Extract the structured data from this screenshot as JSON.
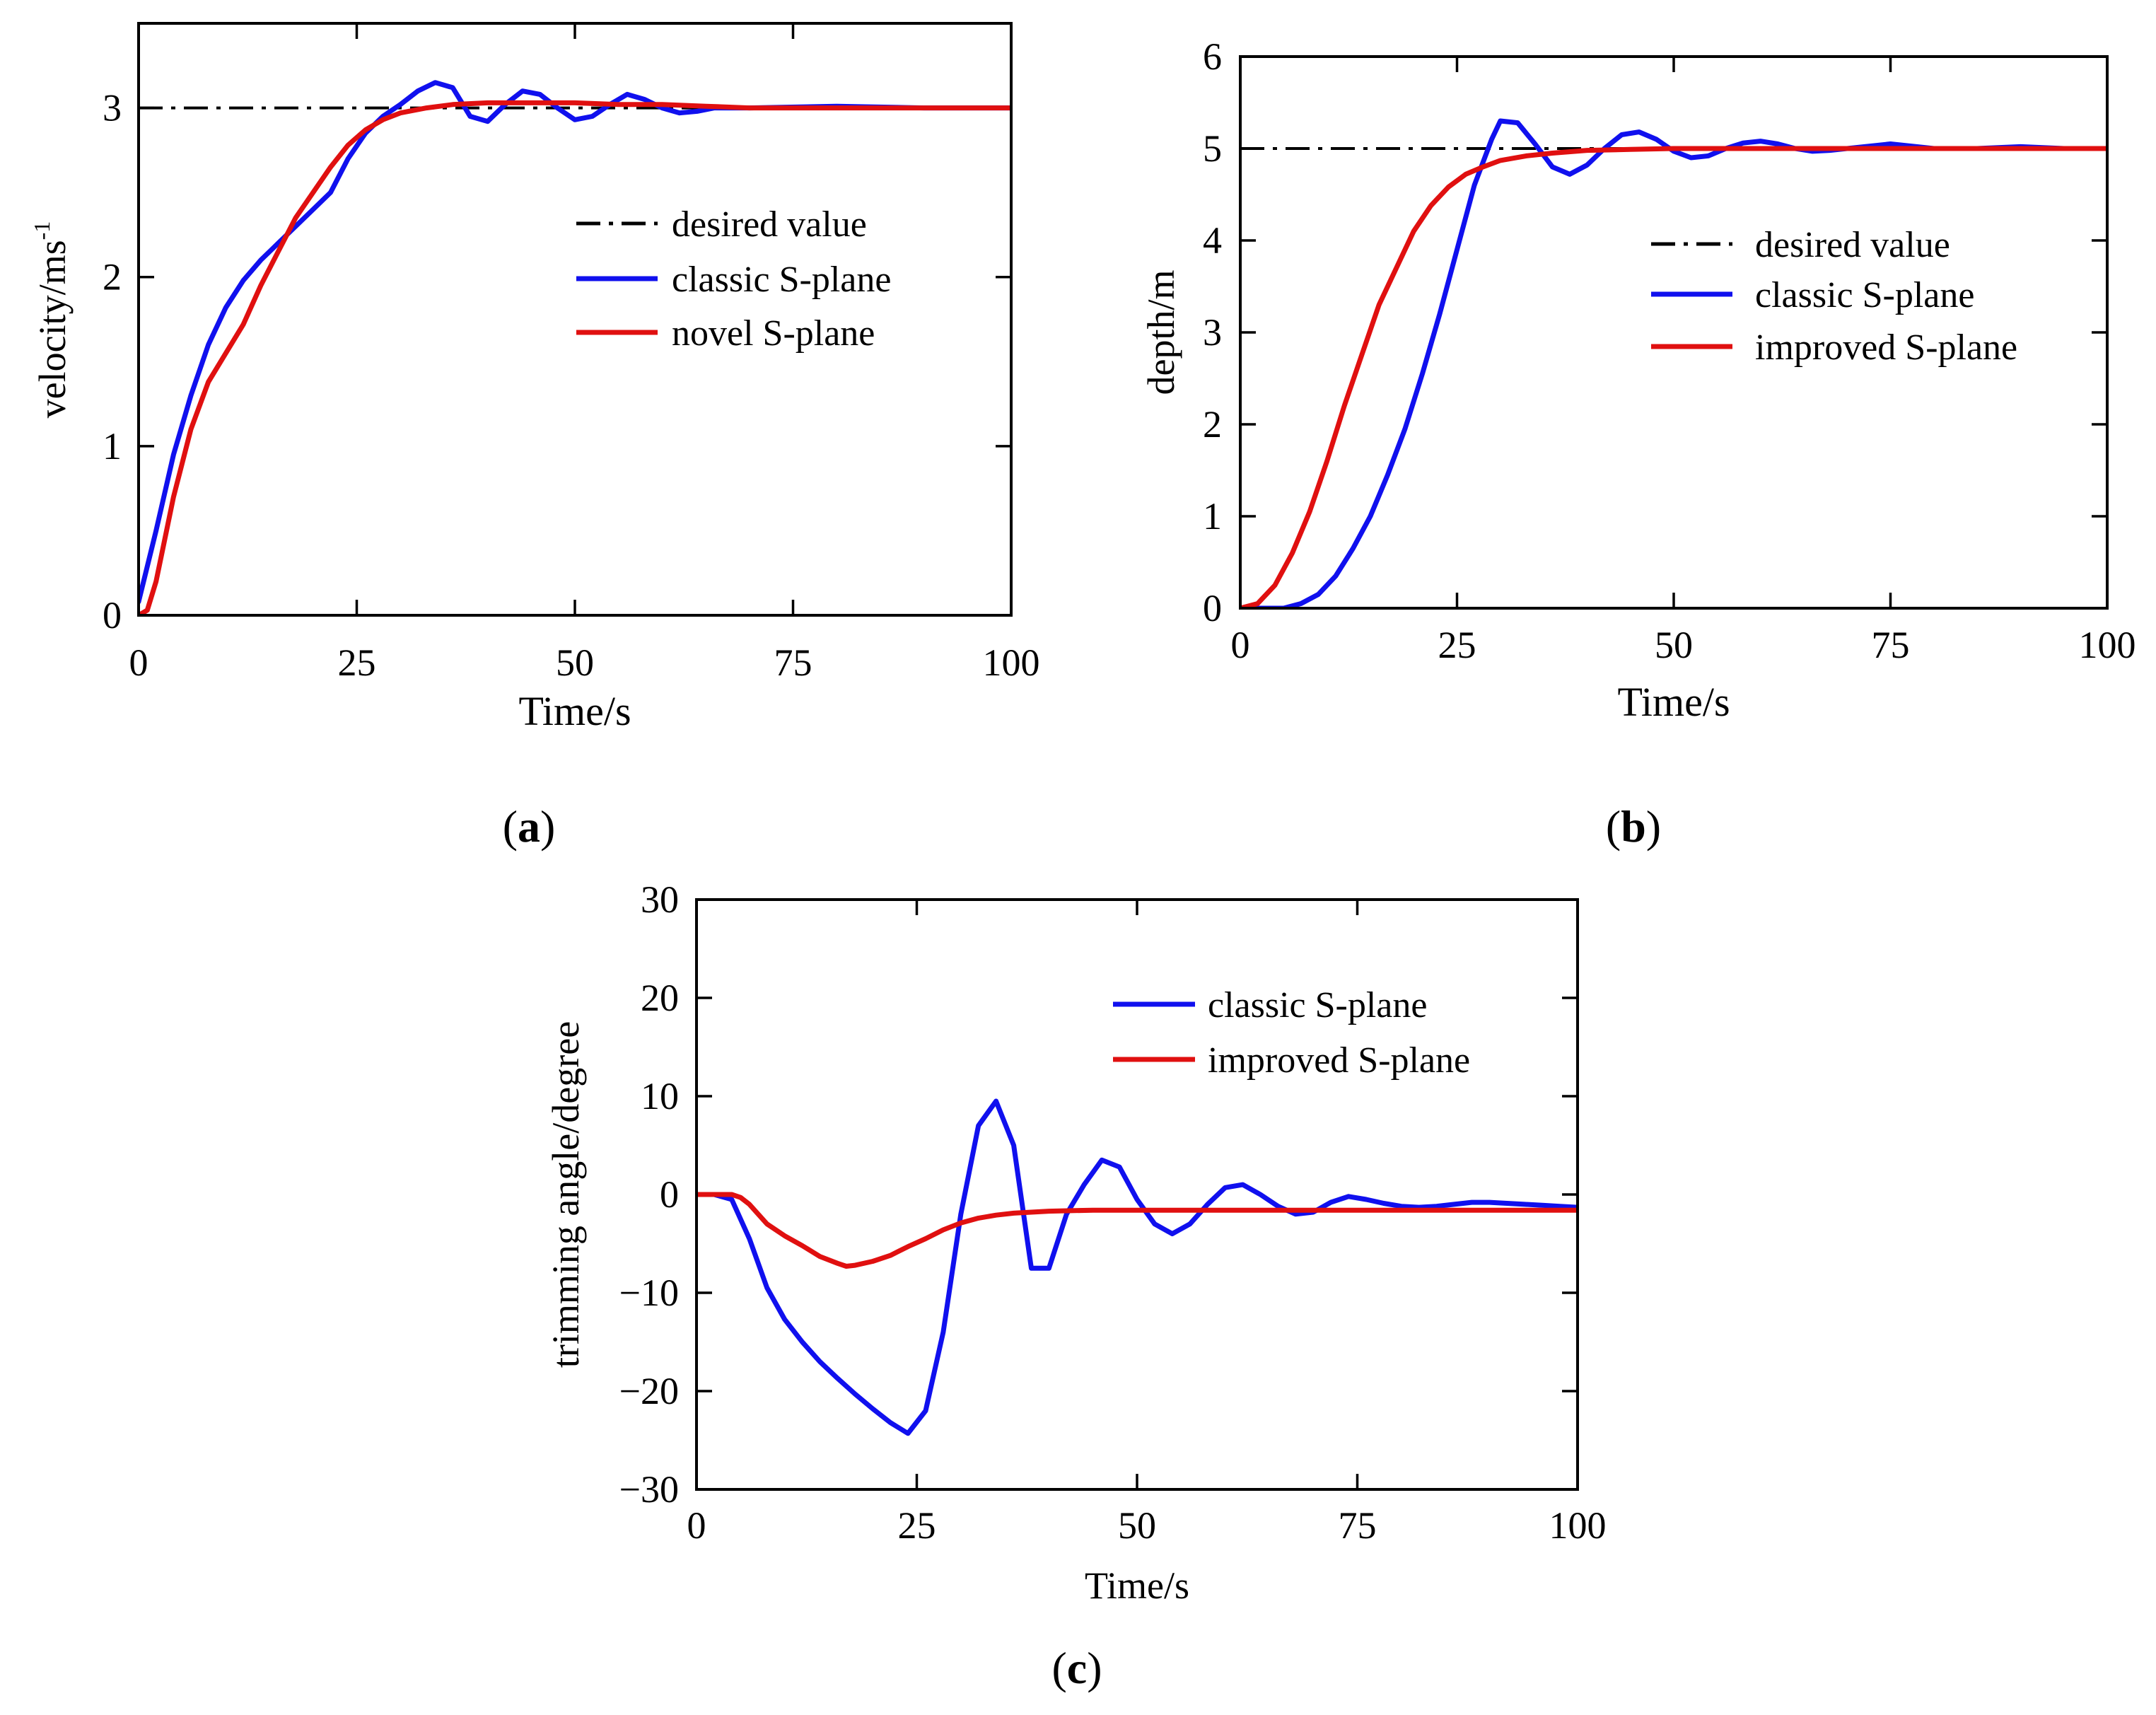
{
  "colors": {
    "desired": "#000000",
    "classic": "#1010ee",
    "improved": "#e01010"
  },
  "chart_data": [
    {
      "id": "a",
      "type": "line",
      "panel_label": "a",
      "xlabel": "Time/s",
      "ylabel": "velocity/ms",
      "ylabel_sup": "-1",
      "xlim": [
        0,
        100
      ],
      "ylim": [
        0,
        3.5
      ],
      "xticks": [
        0,
        25,
        50,
        75,
        100
      ],
      "yticks": [
        0,
        1,
        2,
        3
      ],
      "xtick_labels": [
        "0",
        "25",
        "50",
        "75",
        "100"
      ],
      "ytick_labels": [
        "0",
        "1",
        "2",
        "3"
      ],
      "legend_position": "right-middle",
      "series": [
        {
          "name": "desired value",
          "style": "dashdot",
          "color": "#000000",
          "x": [
            0,
            100
          ],
          "y": [
            3,
            3
          ]
        },
        {
          "name": "classic S-plane",
          "style": "solid",
          "color": "#1010ee",
          "x": [
            0,
            2,
            4,
            6,
            8,
            10,
            12,
            14,
            16,
            18,
            20,
            22,
            24,
            26,
            28,
            30,
            32,
            34,
            36,
            38,
            40,
            42,
            44,
            46,
            48,
            50,
            52,
            54,
            56,
            58,
            60,
            62,
            64,
            66,
            70,
            80,
            90,
            100
          ],
          "y": [
            0.08,
            0.5,
            0.95,
            1.3,
            1.6,
            1.82,
            1.98,
            2.1,
            2.2,
            2.3,
            2.4,
            2.5,
            2.7,
            2.85,
            2.95,
            3.02,
            3.1,
            3.15,
            3.12,
            2.95,
            2.92,
            3.02,
            3.1,
            3.08,
            3.0,
            2.93,
            2.95,
            3.02,
            3.08,
            3.05,
            3.0,
            2.97,
            2.98,
            3.0,
            3.0,
            3.01,
            3.0,
            3.0
          ]
        },
        {
          "name": "novel S-plane",
          "style": "solid",
          "color": "#e01010",
          "x": [
            0,
            1,
            2,
            4,
            6,
            8,
            10,
            12,
            14,
            16,
            18,
            20,
            22,
            24,
            26,
            28,
            30,
            33,
            36,
            40,
            45,
            50,
            55,
            60,
            65,
            70,
            80,
            90,
            100
          ],
          "y": [
            0,
            0.03,
            0.2,
            0.7,
            1.1,
            1.38,
            1.55,
            1.72,
            1.95,
            2.15,
            2.35,
            2.5,
            2.65,
            2.78,
            2.87,
            2.93,
            2.97,
            3.0,
            3.02,
            3.03,
            3.03,
            3.03,
            3.02,
            3.02,
            3.01,
            3.0,
            3.0,
            3.0,
            3.0
          ]
        }
      ]
    },
    {
      "id": "b",
      "type": "line",
      "panel_label": "b",
      "xlabel": "Time/s",
      "ylabel": "depth/m",
      "xlim": [
        0,
        100
      ],
      "ylim": [
        0,
        6
      ],
      "xticks": [
        0,
        25,
        50,
        75,
        100
      ],
      "yticks": [
        0,
        1,
        2,
        3,
        4,
        5,
        6
      ],
      "xtick_labels": [
        "0",
        "25",
        "50",
        "75",
        "100"
      ],
      "ytick_labels": [
        "0",
        "1",
        "2",
        "3",
        "4",
        "5",
        "6"
      ],
      "legend_position": "right-middle",
      "series": [
        {
          "name": "desired value",
          "style": "dashdot",
          "color": "#000000",
          "x": [
            0,
            100
          ],
          "y": [
            5,
            5
          ]
        },
        {
          "name": "classic S-plane",
          "style": "solid",
          "color": "#1010ee",
          "x": [
            0,
            5,
            7,
            9,
            11,
            13,
            15,
            17,
            19,
            21,
            23,
            25,
            27,
            29,
            30,
            32,
            34,
            36,
            38,
            40,
            42,
            44,
            46,
            48,
            50,
            52,
            54,
            56,
            58,
            60,
            62,
            64,
            66,
            68,
            70,
            75,
            80,
            85,
            90,
            95,
            100
          ],
          "y": [
            0,
            0,
            0.05,
            0.15,
            0.35,
            0.65,
            1.0,
            1.45,
            1.95,
            2.55,
            3.2,
            3.9,
            4.6,
            5.1,
            5.3,
            5.28,
            5.05,
            4.8,
            4.72,
            4.82,
            5.0,
            5.15,
            5.18,
            5.1,
            4.97,
            4.9,
            4.92,
            5.0,
            5.06,
            5.08,
            5.05,
            5.0,
            4.97,
            4.98,
            5.0,
            5.05,
            5.0,
            5.0,
            5.02,
            5.0,
            5.0
          ]
        },
        {
          "name": "improved  S-plane",
          "style": "solid",
          "color": "#e01010",
          "x": [
            0,
            2,
            4,
            6,
            8,
            10,
            12,
            14,
            16,
            18,
            20,
            22,
            24,
            26,
            28,
            30,
            33,
            36,
            40,
            45,
            50,
            55,
            60,
            70,
            80,
            90,
            100
          ],
          "y": [
            0,
            0.05,
            0.25,
            0.6,
            1.05,
            1.6,
            2.2,
            2.75,
            3.3,
            3.7,
            4.1,
            4.38,
            4.58,
            4.72,
            4.8,
            4.87,
            4.92,
            4.95,
            4.98,
            4.99,
            5.0,
            5.0,
            5.0,
            5.0,
            5.0,
            5.0,
            5.0
          ]
        }
      ]
    },
    {
      "id": "c",
      "type": "line",
      "panel_label": "c",
      "xlabel": "Time/s",
      "ylabel": "trimming angle/degree",
      "xlim": [
        0,
        100
      ],
      "ylim": [
        -30,
        30
      ],
      "xticks": [
        0,
        25,
        50,
        75,
        100
      ],
      "yticks": [
        -30,
        -20,
        -10,
        0,
        10,
        20,
        30
      ],
      "xtick_labels": [
        "0",
        "25",
        "50",
        "75",
        "100"
      ],
      "ytick_labels": [
        "−30",
        "−20",
        "−10",
        "0",
        "10",
        "20",
        "30"
      ],
      "legend_position": "top-right",
      "series": [
        {
          "name": "classic S-plane",
          "style": "solid",
          "color": "#1010ee",
          "x": [
            0,
            2,
            4,
            6,
            8,
            10,
            12,
            14,
            16,
            18,
            20,
            22,
            24,
            26,
            28,
            30,
            32,
            34,
            36,
            38,
            40,
            42,
            44,
            46,
            48,
            50,
            52,
            54,
            56,
            58,
            60,
            62,
            64,
            66,
            68,
            70,
            72,
            74,
            76,
            78,
            80,
            82,
            84,
            86,
            88,
            90,
            92,
            94,
            96,
            98,
            100
          ],
          "y": [
            0,
            0,
            -0.5,
            -4.5,
            -9.5,
            -12.7,
            -15,
            -17,
            -18.7,
            -20.3,
            -21.8,
            -23.2,
            -24.3,
            -22,
            -14,
            -2,
            7,
            9.5,
            5,
            -7.5,
            -7.5,
            -2,
            1,
            3.5,
            2.8,
            -0.5,
            -3,
            -4,
            -3,
            -1,
            0.7,
            1,
            0,
            -1.2,
            -2,
            -1.8,
            -0.8,
            -0.2,
            -0.5,
            -0.9,
            -1.2,
            -1.3,
            -1.2,
            -1.0,
            -0.8,
            -0.8,
            -0.9,
            -1.0,
            -1.1,
            -1.2,
            -1.3
          ]
        },
        {
          "name": "improved  S-plane",
          "style": "solid",
          "color": "#e01010",
          "x": [
            0,
            2,
            4,
            5,
            6,
            8,
            10,
            12,
            14,
            16,
            17,
            18,
            20,
            22,
            24,
            26,
            28,
            30,
            32,
            34,
            36,
            38,
            40,
            45,
            50,
            60,
            70,
            80,
            90,
            100
          ],
          "y": [
            0,
            0,
            0,
            -0.3,
            -1,
            -3,
            -4.2,
            -5.2,
            -6.3,
            -7,
            -7.3,
            -7.2,
            -6.8,
            -6.2,
            -5.3,
            -4.5,
            -3.6,
            -2.9,
            -2.4,
            -2.1,
            -1.9,
            -1.8,
            -1.7,
            -1.6,
            -1.6,
            -1.6,
            -1.6,
            -1.6,
            -1.6,
            -1.6
          ]
        }
      ]
    }
  ]
}
